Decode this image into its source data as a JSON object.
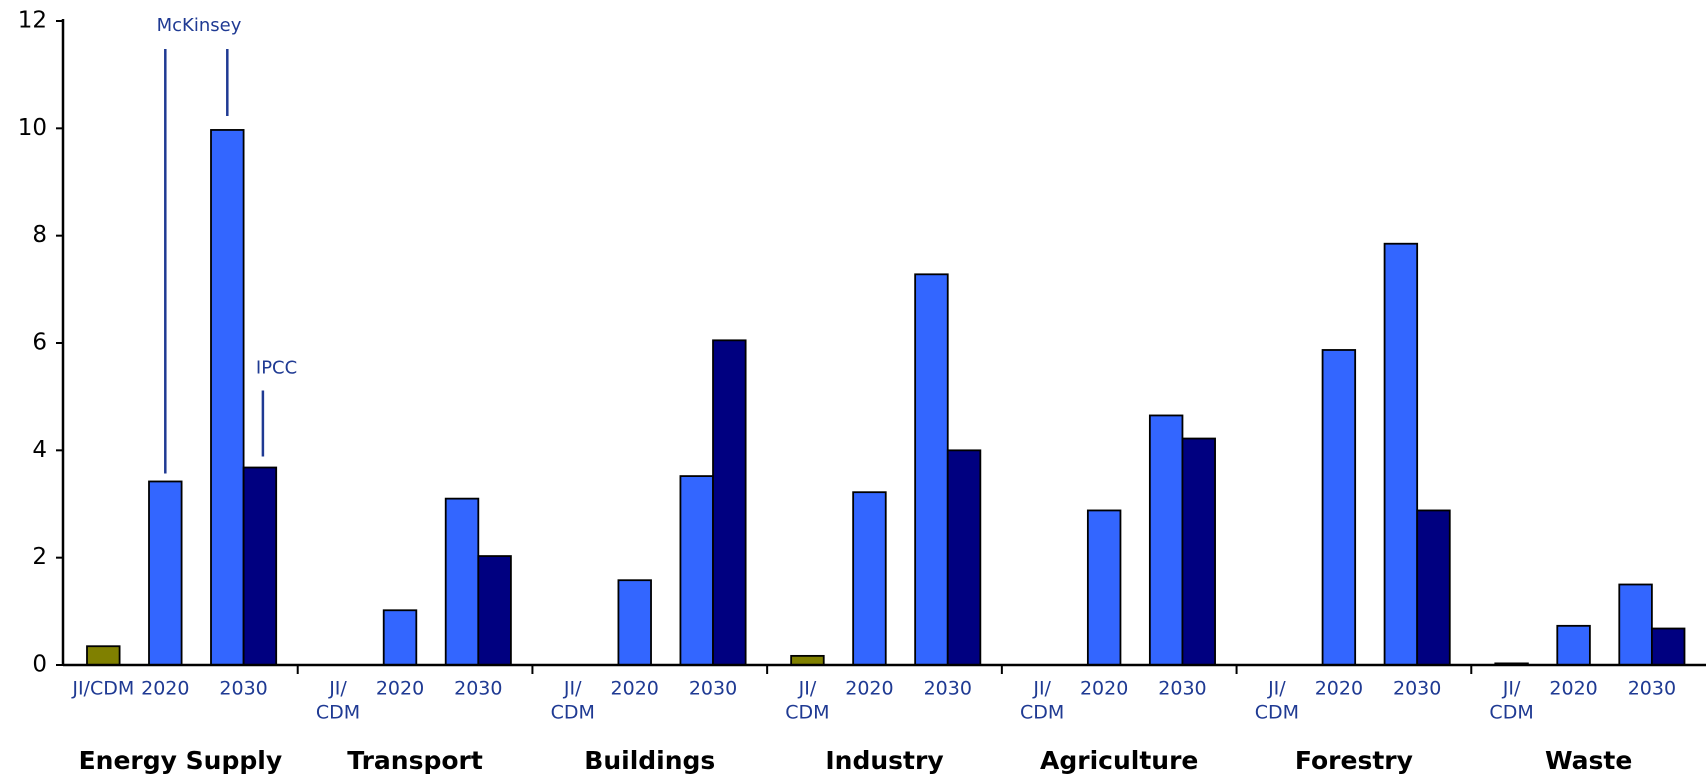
{
  "chart_data": {
    "type": "bar",
    "groups": [
      "Energy Supply",
      "Transport",
      "Buildings",
      "Industry",
      "Agriculture",
      "Forestry",
      "Waste"
    ],
    "sublabels": [
      [
        [
          "JI/CDM"
        ],
        [
          "2020"
        ],
        [
          "2030"
        ]
      ],
      [
        [
          "JI/",
          "CDM"
        ],
        [
          "2020"
        ],
        [
          "2030"
        ]
      ],
      [
        [
          "JI/",
          "CDM"
        ],
        [
          "2020"
        ],
        [
          "2030"
        ]
      ],
      [
        [
          "JI/",
          "CDM"
        ],
        [
          "2020"
        ],
        [
          "2030"
        ]
      ],
      [
        [
          "JI/",
          "CDM"
        ],
        [
          "2020"
        ],
        [
          "2030"
        ]
      ],
      [
        [
          "JI/",
          "CDM"
        ],
        [
          "2020"
        ],
        [
          "2030"
        ]
      ],
      [
        [
          "JI/",
          "CDM"
        ],
        [
          "2020"
        ],
        [
          "2030"
        ]
      ]
    ],
    "series": [
      {
        "color": "#808000",
        "values": [
          0.35,
          null,
          null,
          0.17,
          null,
          null,
          0.03
        ]
      },
      {
        "color": "#3366ff",
        "values": [
          3.42,
          1.02,
          1.58,
          3.22,
          2.88,
          5.87,
          0.73
        ]
      },
      {
        "color": "#3366ff",
        "values": [
          9.97,
          3.1,
          3.52,
          7.28,
          4.65,
          7.85,
          1.5
        ]
      },
      {
        "color": "#000080",
        "values": [
          3.68,
          2.03,
          6.05,
          4.0,
          4.22,
          2.88,
          0.68
        ]
      }
    ],
    "annotations": [
      "McKinsey",
      "IPCC"
    ],
    "ylim": [
      0,
      12
    ],
    "yticks": [
      0,
      2,
      4,
      6,
      8,
      10,
      12
    ]
  }
}
